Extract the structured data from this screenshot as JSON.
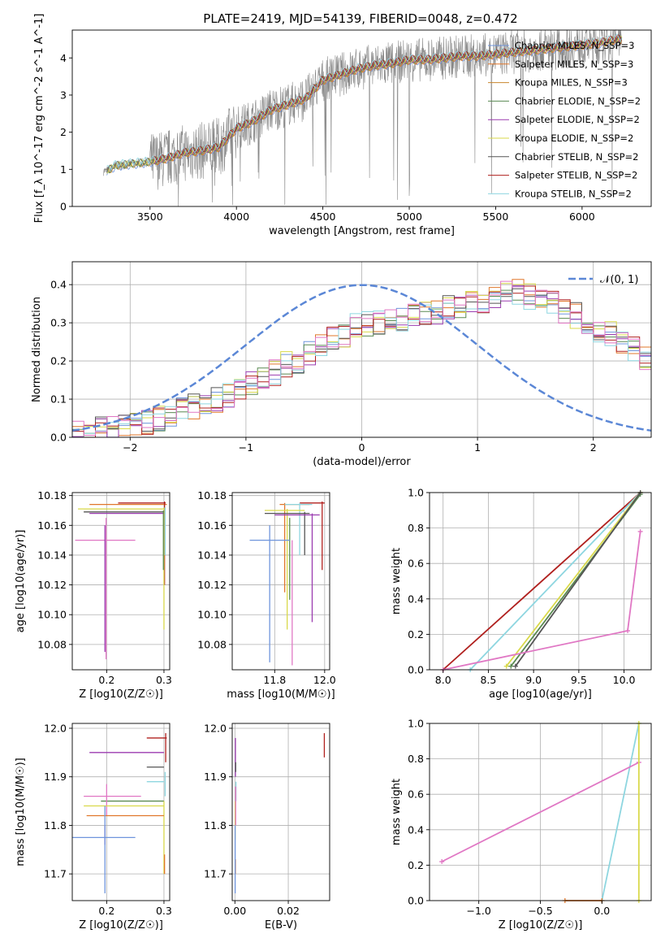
{
  "title": "PLATE=2419, MJD=54139, FIBERID=0048, z=0.472",
  "colors": {
    "Chabrier MILES": "#6f95dc",
    "Salpeter MILES": "#e0772a",
    "Kroupa MILES": "#c8872e",
    "Chabrier ELODIE": "#5a8a52",
    "Salpeter ELODIE": "#9b3cb0",
    "Kroupa ELODIE": "#d9d94a",
    "Chabrier STELIB": "#555555",
    "Salpeter STELIB": "#b0201e",
    "Kroupa STELIB": "#8ed6e0",
    "data": "#888888",
    "gauss": "#5b87d6",
    "pink": "#e077c4"
  },
  "legend_spectrum": [
    "Chabrier MILES, N_SSP=3",
    "Salpeter MILES, N_SSP=3",
    "Kroupa MILES, N_SSP=3",
    "Chabrier ELODIE, N_SSP=2",
    "Salpeter ELODIE, N_SSP=2",
    "Kroupa ELODIE, N_SSP=2",
    "Chabrier STELIB, N_SSP=2",
    "Salpeter STELIB, N_SSP=2",
    "Kroupa STELIB, N_SSP=2"
  ],
  "legend_hist": "𝒩(0, 1)",
  "chart_data": [
    {
      "type": "line",
      "id": "spectrum",
      "title": "PLATE=2419, MJD=54139, FIBERID=0048, z=0.472",
      "xlabel": "wavelength [Angstrom, rest frame]",
      "ylabel": "Flux [f_λ 10^-17 erg cm^-2 s^-1 A^-1]",
      "xlim": [
        3050,
        6400
      ],
      "ylim": [
        0,
        4.75
      ],
      "xticks": [
        3500,
        4000,
        4500,
        5000,
        5500,
        6000
      ],
      "yticks": [
        0,
        1,
        2,
        3,
        4
      ],
      "model_continuum": {
        "x": [
          3250,
          3300,
          3400,
          3500,
          3600,
          3700,
          3800,
          3900,
          4000,
          4100,
          4200,
          4300,
          4400,
          4500,
          4600,
          4700,
          4800,
          4900,
          5000,
          5100,
          5200,
          5300,
          5400,
          5500,
          5600,
          5700,
          5800,
          5900,
          6000,
          6100,
          6200
        ],
        "y": [
          0.95,
          1.1,
          1.15,
          1.2,
          1.3,
          1.45,
          1.5,
          1.6,
          2.1,
          2.3,
          2.6,
          2.75,
          2.9,
          3.4,
          3.55,
          3.7,
          3.8,
          3.85,
          3.95,
          3.95,
          4.0,
          4.05,
          4.05,
          4.1,
          4.15,
          4.2,
          4.25,
          4.3,
          4.35,
          4.4,
          4.5
        ]
      }
    },
    {
      "type": "step",
      "id": "residual_hist",
      "xlabel": "(data-model)/error",
      "ylabel": "Normed distribution",
      "xlim": [
        -2.5,
        2.5
      ],
      "ylim": [
        0,
        0.46
      ],
      "xticks": [
        -2,
        -1,
        0,
        1,
        2
      ],
      "yticks": [
        0.0,
        0.1,
        0.2,
        0.3,
        0.4
      ],
      "bin_edges_start": -2.5,
      "bin_width": 0.1,
      "reference": "N(0,1) dashed",
      "envelope": [
        0.01,
        0.01,
        0.02,
        0.02,
        0.03,
        0.03,
        0.04,
        0.05,
        0.06,
        0.07,
        0.08,
        0.09,
        0.1,
        0.11,
        0.12,
        0.14,
        0.15,
        0.17,
        0.19,
        0.2,
        0.22,
        0.24,
        0.26,
        0.27,
        0.29,
        0.3,
        0.3,
        0.31,
        0.31,
        0.32,
        0.33,
        0.33,
        0.34,
        0.34,
        0.35,
        0.36,
        0.37,
        0.38,
        0.38,
        0.37,
        0.36,
        0.35,
        0.33,
        0.32,
        0.3,
        0.28,
        0.27,
        0.25,
        0.23,
        0.21
      ]
    },
    {
      "type": "errorbar",
      "id": "age_vs_Z",
      "xlabel": "Z [log10(Z/Z☉)]",
      "ylabel": "age [log10(age/yr)]",
      "xlim": [
        0.14,
        0.31
      ],
      "ylim": [
        10.063,
        10.182
      ],
      "xticks": [
        0.2,
        0.3
      ],
      "yticks": [
        10.08,
        10.1,
        10.12,
        10.14,
        10.16,
        10.18
      ]
    },
    {
      "type": "errorbar",
      "id": "age_vs_mass",
      "xlabel": "mass [log10(M/M☉)]",
      "xlim": [
        11.63,
        12.02
      ],
      "ylim": [
        10.063,
        10.182
      ],
      "xticks": [
        11.8,
        12.0
      ],
      "yticks": [
        10.08,
        10.1,
        10.12,
        10.14,
        10.16,
        10.18
      ]
    },
    {
      "type": "line",
      "id": "massweight_vs_age",
      "xlabel": "age [log10(age/yr)]",
      "ylabel": "mass weight",
      "xlim": [
        7.85,
        10.3
      ],
      "ylim": [
        0,
        1
      ],
      "xticks": [
        8.0,
        8.5,
        9.0,
        9.5,
        10.0
      ],
      "yticks": [
        0.0,
        0.2,
        0.4,
        0.6,
        0.8,
        1.0
      ],
      "series": [
        {
          "x": [
            8.0,
            10.18
          ],
          "y": [
            0.0,
            1.0
          ]
        },
        {
          "x": [
            8.3,
            10.18
          ],
          "y": [
            0.0,
            1.0
          ]
        },
        {
          "x": [
            8.7,
            10.18
          ],
          "y": [
            0.02,
            1.0
          ]
        },
        {
          "x": [
            8.75,
            10.18
          ],
          "y": [
            0.02,
            0.99
          ]
        },
        {
          "x": [
            8.8,
            10.18
          ],
          "y": [
            0.02,
            1.0
          ]
        },
        {
          "x": [
            8.0,
            10.04,
            10.18
          ],
          "y": [
            0.0,
            0.22,
            0.78
          ]
        }
      ]
    },
    {
      "type": "errorbar",
      "id": "mass_vs_Z",
      "xlabel": "Z [log10(Z/Z☉)]",
      "ylabel": "mass [log10(M/M☉)]",
      "xlim": [
        0.14,
        0.31
      ],
      "ylim": [
        11.645,
        12.01
      ],
      "xticks": [
        0.2,
        0.3
      ],
      "yticks": [
        11.7,
        11.8,
        11.9,
        12.0
      ]
    },
    {
      "type": "errorbar",
      "id": "mass_vs_ebv",
      "xlabel": "E(B-V)",
      "xlim": [
        -0.001,
        0.0355
      ],
      "ylim": [
        11.645,
        12.01
      ],
      "xticks": [
        0.0,
        0.02
      ],
      "yticks": [
        11.7,
        11.8,
        11.9,
        12.0
      ]
    },
    {
      "type": "line",
      "id": "massweight_vs_Z",
      "xlabel": "Z [log10(Z/Z☉)]",
      "ylabel": "mass weight",
      "xlim": [
        -1.4,
        0.4
      ],
      "ylim": [
        0,
        1
      ],
      "xticks": [
        -1.0,
        -0.5,
        0.0
      ],
      "yticks": [
        0.0,
        0.2,
        0.4,
        0.6,
        0.8,
        1.0
      ],
      "series": [
        {
          "x": [
            0.0,
            0.3
          ],
          "y": [
            0.0,
            1.0
          ]
        },
        {
          "x": [
            -1.3,
            0.3
          ],
          "y": [
            0.22,
            0.78
          ]
        },
        {
          "x": [
            0.3,
            0.3
          ],
          "y": [
            0.0,
            1.0
          ]
        },
        {
          "x": [
            -0.3,
            0.0
          ],
          "y": [
            0.0,
            0.0
          ]
        }
      ]
    }
  ]
}
